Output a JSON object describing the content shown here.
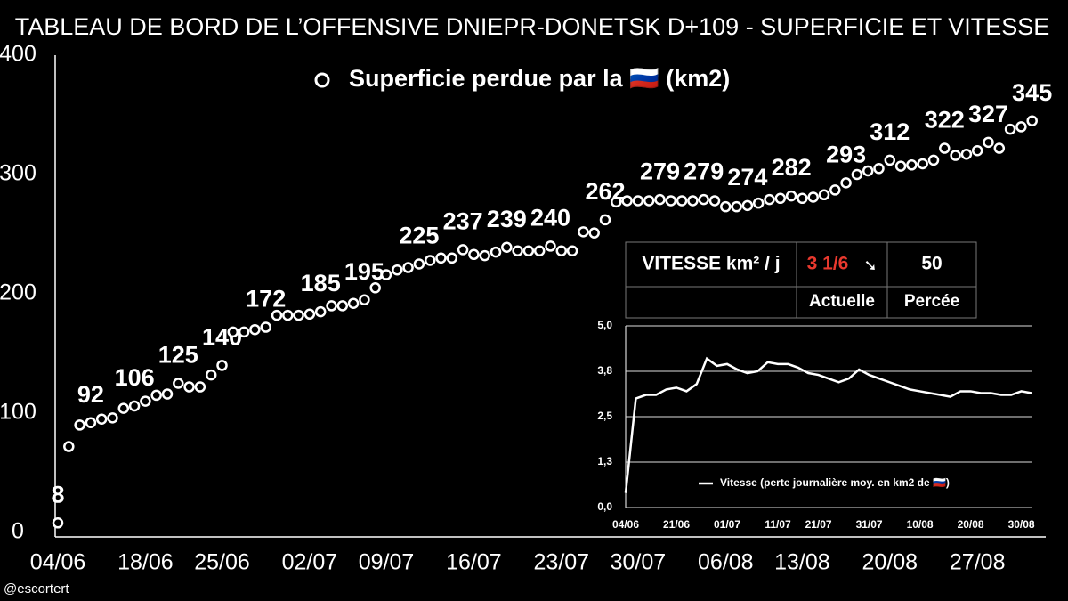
{
  "header": {
    "title": "TABLEAU DE BORD DE L’OFFENSIVE DNIEPR-DONETSK D+109 - SUPERFICIE ET VITESSE",
    "credit": "@escortert"
  },
  "table": {
    "title": "VITESSE km² / j",
    "current": "3 1/6",
    "trend": "➘",
    "breakthrough": "50",
    "current_label": "Actuelle",
    "breakthrough_label": "Percée"
  },
  "chart_data": [
    {
      "type": "scatter",
      "categories": [
        "04/06",
        null,
        null,
        null,
        null,
        null,
        null,
        null,
        "18/06",
        null,
        null,
        null,
        null,
        null,
        null,
        "25/06",
        null,
        null,
        null,
        null,
        null,
        null,
        null,
        "02/07",
        null,
        null,
        null,
        null,
        null,
        null,
        "09/07",
        null,
        null,
        null,
        null,
        null,
        null,
        null,
        "16/07",
        null,
        null,
        null,
        null,
        null,
        null,
        null,
        "23/07",
        null,
        null,
        null,
        null,
        null,
        null,
        "30/07",
        null,
        null,
        null,
        null,
        null,
        null,
        null,
        "06/08",
        null,
        null,
        null,
        null,
        null,
        null,
        "13/08",
        null,
        null,
        null,
        null,
        null,
        null,
        null,
        "20/08",
        null,
        null,
        null,
        null,
        null,
        null,
        null,
        "27/08",
        null,
        null,
        null,
        null,
        null
      ],
      "series": [
        {
          "name": "Superficie perdue par la 🇷🇺 (km2)",
          "color": "#ffffff",
          "values": [
            8,
            72,
            90,
            92,
            95,
            96,
            104,
            106,
            110,
            115,
            116,
            125,
            122,
            122,
            132,
            140,
            168,
            168,
            170,
            172,
            182,
            182,
            182,
            183,
            185,
            190,
            190,
            192,
            195,
            205,
            216,
            220,
            222,
            225,
            228,
            230,
            230,
            237,
            233,
            232,
            235,
            239,
            236,
            236,
            236,
            240,
            236,
            236,
            252,
            251,
            262,
            277,
            278,
            278,
            278,
            279,
            278,
            278,
            278,
            279,
            278,
            273,
            273,
            274,
            276,
            279,
            280,
            282,
            280,
            281,
            283,
            287,
            293,
            300,
            303,
            305,
            312,
            307,
            308,
            309,
            312,
            322,
            316,
            317,
            320,
            327,
            322,
            338,
            340,
            345
          ],
          "value_labels": [
            8,
            null,
            null,
            92,
            null,
            null,
            null,
            106,
            null,
            null,
            null,
            125,
            null,
            null,
            null,
            140,
            null,
            null,
            null,
            172,
            null,
            null,
            null,
            null,
            185,
            null,
            null,
            null,
            195,
            null,
            null,
            null,
            null,
            225,
            null,
            null,
            null,
            237,
            null,
            null,
            null,
            239,
            null,
            null,
            null,
            240,
            null,
            null,
            null,
            null,
            262,
            null,
            null,
            null,
            null,
            279,
            null,
            null,
            null,
            279,
            null,
            null,
            null,
            274,
            null,
            null,
            null,
            282,
            null,
            null,
            null,
            null,
            293,
            null,
            null,
            null,
            312,
            null,
            null,
            null,
            null,
            322,
            null,
            null,
            null,
            327,
            null,
            null,
            null,
            345
          ]
        }
      ],
      "ylim": [
        0,
        400
      ],
      "yticks": [
        0,
        100,
        200,
        300,
        400
      ],
      "grid": false
    },
    {
      "type": "line",
      "categories": [
        "04/06",
        null,
        null,
        null,
        null,
        "21/06",
        null,
        null,
        null,
        null,
        "01/07",
        null,
        null,
        null,
        null,
        "11/07",
        null,
        null,
        null,
        "21/07",
        null,
        null,
        null,
        null,
        "31/07",
        null,
        null,
        null,
        null,
        "10/08",
        null,
        null,
        null,
        null,
        "20/08",
        null,
        null,
        null,
        null,
        "30/08",
        null
      ],
      "series": [
        {
          "name": "Vitesse (perte journalière moy. en km2 de 🇷🇺)",
          "color": "#ffffff",
          "values": [
            0.4,
            3.0,
            3.1,
            3.1,
            3.25,
            3.3,
            3.2,
            3.4,
            4.1,
            3.9,
            3.95,
            3.8,
            3.7,
            3.75,
            4.0,
            3.95,
            3.95,
            3.85,
            3.7,
            3.65,
            3.55,
            3.45,
            3.55,
            3.8,
            3.65,
            3.55,
            3.45,
            3.35,
            3.25,
            3.2,
            3.15,
            3.1,
            3.05,
            3.2,
            3.2,
            3.15,
            3.15,
            3.1,
            3.1,
            3.2,
            3.15
          ]
        }
      ],
      "ylim": [
        0,
        5
      ],
      "yticks": [
        {
          "value": 0,
          "label": "0,0"
        },
        {
          "value": 1.25,
          "label": "1,3"
        },
        {
          "value": 2.5,
          "label": "2,5"
        },
        {
          "value": 3.75,
          "label": "3,8"
        },
        {
          "value": 5,
          "label": "5,0"
        }
      ],
      "grid": true
    }
  ]
}
